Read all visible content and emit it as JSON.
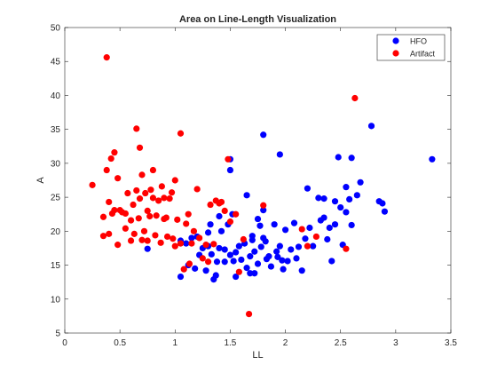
{
  "chart_data": {
    "type": "scatter",
    "title": "Area on Line-Length Visualization",
    "xlabel": "LL",
    "ylabel": "A",
    "xlim": [
      0,
      3.5
    ],
    "ylim": [
      5,
      50
    ],
    "x_ticks": [
      "0",
      "0.5",
      "1",
      "1.5",
      "2",
      "2.5",
      "3",
      "3.5"
    ],
    "y_ticks": [
      "5",
      "10",
      "15",
      "20",
      "25",
      "30",
      "35",
      "40",
      "45",
      "50"
    ],
    "grid": false,
    "legend_position": "top-right",
    "series": [
      {
        "name": "HFO",
        "color": "#0000ff",
        "points": [
          [
            0.75,
            17.4
          ],
          [
            1.05,
            13.3
          ],
          [
            1.05,
            18.6
          ],
          [
            1.1,
            18.2
          ],
          [
            1.12,
            15.0
          ],
          [
            1.15,
            19.0
          ],
          [
            1.18,
            14.5
          ],
          [
            1.2,
            19.2
          ],
          [
            1.22,
            16.5
          ],
          [
            1.25,
            17.5
          ],
          [
            1.28,
            14.2
          ],
          [
            1.3,
            17.8
          ],
          [
            1.3,
            19.8
          ],
          [
            1.32,
            21.0
          ],
          [
            1.33,
            16.6
          ],
          [
            1.35,
            12.9
          ],
          [
            1.37,
            13.5
          ],
          [
            1.38,
            15.5
          ],
          [
            1.4,
            22.2
          ],
          [
            1.4,
            17.5
          ],
          [
            1.42,
            20.0
          ],
          [
            1.45,
            17.3
          ],
          [
            1.45,
            15.5
          ],
          [
            1.48,
            21.0
          ],
          [
            1.5,
            16.5
          ],
          [
            1.5,
            29.0
          ],
          [
            1.5,
            30.6
          ],
          [
            1.52,
            22.5
          ],
          [
            1.53,
            15.6
          ],
          [
            1.55,
            13.3
          ],
          [
            1.55,
            16.9
          ],
          [
            1.58,
            17.8
          ],
          [
            1.6,
            15.8
          ],
          [
            1.63,
            18.2
          ],
          [
            1.65,
            25.3
          ],
          [
            1.65,
            14.6
          ],
          [
            1.68,
            16.3
          ],
          [
            1.68,
            13.8
          ],
          [
            1.7,
            18.7
          ],
          [
            1.7,
            19.3
          ],
          [
            1.72,
            13.8
          ],
          [
            1.72,
            17.0
          ],
          [
            1.75,
            21.8
          ],
          [
            1.75,
            15.2
          ],
          [
            1.77,
            20.8
          ],
          [
            1.78,
            17.7
          ],
          [
            1.8,
            19.0
          ],
          [
            1.8,
            23.1
          ],
          [
            1.8,
            34.2
          ],
          [
            1.82,
            18.5
          ],
          [
            1.83,
            15.9
          ],
          [
            1.85,
            16.3
          ],
          [
            1.87,
            14.8
          ],
          [
            1.9,
            21.0
          ],
          [
            1.92,
            17.0
          ],
          [
            1.93,
            16.2
          ],
          [
            1.95,
            31.3
          ],
          [
            1.95,
            17.8
          ],
          [
            1.97,
            15.7
          ],
          [
            1.98,
            14.4
          ],
          [
            2.0,
            20.2
          ],
          [
            2.02,
            15.6
          ],
          [
            2.05,
            17.3
          ],
          [
            2.08,
            21.2
          ],
          [
            2.1,
            16.0
          ],
          [
            2.12,
            17.7
          ],
          [
            2.15,
            14.2
          ],
          [
            2.18,
            18.9
          ],
          [
            2.2,
            26.3
          ],
          [
            2.22,
            20.5
          ],
          [
            2.25,
            17.8
          ],
          [
            2.3,
            24.9
          ],
          [
            2.32,
            21.6
          ],
          [
            2.35,
            24.8
          ],
          [
            2.35,
            22.0
          ],
          [
            2.38,
            18.8
          ],
          [
            2.4,
            20.5
          ],
          [
            2.42,
            15.6
          ],
          [
            2.45,
            24.4
          ],
          [
            2.45,
            21.0
          ],
          [
            2.48,
            30.9
          ],
          [
            2.5,
            23.5
          ],
          [
            2.52,
            18.0
          ],
          [
            2.55,
            22.8
          ],
          [
            2.55,
            26.5
          ],
          [
            2.58,
            24.7
          ],
          [
            2.6,
            20.9
          ],
          [
            2.6,
            30.8
          ],
          [
            2.65,
            25.3
          ],
          [
            2.68,
            27.2
          ],
          [
            2.78,
            35.5
          ],
          [
            2.85,
            24.4
          ],
          [
            2.88,
            24.1
          ],
          [
            2.9,
            22.9
          ],
          [
            3.33,
            30.6
          ]
        ]
      },
      {
        "name": "Artifact",
        "color": "#ff0000",
        "points": [
          [
            0.25,
            26.8
          ],
          [
            0.35,
            22.1
          ],
          [
            0.35,
            19.3
          ],
          [
            0.38,
            29.0
          ],
          [
            0.38,
            45.6
          ],
          [
            0.4,
            24.3
          ],
          [
            0.4,
            19.6
          ],
          [
            0.42,
            30.7
          ],
          [
            0.43,
            22.6
          ],
          [
            0.45,
            23.1
          ],
          [
            0.45,
            31.6
          ],
          [
            0.48,
            18.0
          ],
          [
            0.48,
            27.8
          ],
          [
            0.5,
            23.1
          ],
          [
            0.52,
            22.8
          ],
          [
            0.55,
            20.4
          ],
          [
            0.55,
            22.6
          ],
          [
            0.57,
            25.6
          ],
          [
            0.6,
            21.6
          ],
          [
            0.6,
            18.6
          ],
          [
            0.62,
            23.9
          ],
          [
            0.63,
            19.6
          ],
          [
            0.65,
            35.1
          ],
          [
            0.65,
            26.0
          ],
          [
            0.67,
            21.9
          ],
          [
            0.68,
            24.8
          ],
          [
            0.68,
            32.3
          ],
          [
            0.7,
            18.7
          ],
          [
            0.7,
            28.3
          ],
          [
            0.72,
            20.0
          ],
          [
            0.73,
            25.6
          ],
          [
            0.75,
            23.0
          ],
          [
            0.75,
            18.6
          ],
          [
            0.77,
            22.2
          ],
          [
            0.78,
            26.1
          ],
          [
            0.8,
            24.9
          ],
          [
            0.8,
            29.0
          ],
          [
            0.82,
            19.4
          ],
          [
            0.83,
            22.3
          ],
          [
            0.85,
            24.5
          ],
          [
            0.87,
            18.3
          ],
          [
            0.88,
            26.6
          ],
          [
            0.9,
            21.8
          ],
          [
            0.9,
            24.9
          ],
          [
            0.92,
            22.0
          ],
          [
            0.93,
            19.2
          ],
          [
            0.95,
            24.8
          ],
          [
            0.97,
            25.7
          ],
          [
            0.98,
            18.9
          ],
          [
            1.0,
            27.5
          ],
          [
            1.0,
            17.8
          ],
          [
            1.02,
            21.7
          ],
          [
            1.05,
            34.4
          ],
          [
            1.05,
            18.2
          ],
          [
            1.08,
            14.4
          ],
          [
            1.1,
            21.1
          ],
          [
            1.12,
            22.5
          ],
          [
            1.13,
            15.2
          ],
          [
            1.15,
            18.2
          ],
          [
            1.17,
            20.0
          ],
          [
            1.2,
            26.2
          ],
          [
            1.22,
            19.0
          ],
          [
            1.25,
            16.0
          ],
          [
            1.28,
            18.0
          ],
          [
            1.3,
            15.5
          ],
          [
            1.32,
            23.9
          ],
          [
            1.35,
            18.1
          ],
          [
            1.37,
            24.5
          ],
          [
            1.4,
            24.1
          ],
          [
            1.42,
            24.3
          ],
          [
            1.45,
            23.0
          ],
          [
            1.48,
            30.6
          ],
          [
            1.5,
            21.4
          ],
          [
            1.55,
            22.5
          ],
          [
            1.58,
            14.0
          ],
          [
            1.62,
            18.8
          ],
          [
            1.67,
            7.8
          ],
          [
            1.8,
            23.8
          ],
          [
            2.15,
            20.3
          ],
          [
            2.2,
            17.8
          ],
          [
            2.28,
            19.2
          ],
          [
            2.55,
            17.4
          ],
          [
            2.63,
            39.6
          ]
        ]
      }
    ]
  }
}
